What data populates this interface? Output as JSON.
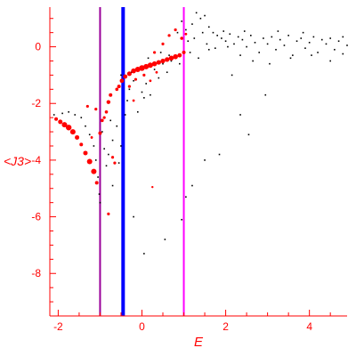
{
  "chart_data": {
    "type": "scatter",
    "title": "",
    "xlabel": "E",
    "ylabel": "<J3>",
    "xlim": [
      -2.2,
      4.9
    ],
    "ylim": [
      -9.5,
      1.4
    ],
    "x_ticks": [
      -2,
      0,
      2,
      4
    ],
    "y_ticks": [
      0,
      -2,
      -4,
      -6,
      -8
    ],
    "grid": false,
    "legend": "none",
    "colors": {
      "axis": "#ff0000",
      "black_points": "#000000",
      "red_points": "#ff0000",
      "blue_line": "#0000ff",
      "magenta_line": "#ff00ff",
      "purple_line": "#990099"
    },
    "vertical_lines": [
      {
        "x": -1.0,
        "color": "#990099",
        "width": 2
      },
      {
        "x": -0.45,
        "color": "#0000ff",
        "width": 4
      },
      {
        "x": 1.0,
        "color": "#ff00ff",
        "width": 2
      }
    ],
    "series": [
      {
        "marker": "small-dot",
        "color": "#000000",
        "points": [
          [
            -2.1,
            -2.4
          ],
          [
            -1.9,
            -2.35
          ],
          [
            -1.75,
            -2.3
          ],
          [
            -1.6,
            -2.4
          ],
          [
            -1.45,
            -2.5
          ],
          [
            -1.35,
            -2.8
          ],
          [
            -1.25,
            -3.1
          ],
          [
            -1.15,
            -3.5
          ],
          [
            -1.1,
            -4.0
          ],
          [
            -1.05,
            -4.6
          ],
          [
            -1.02,
            -5.2
          ],
          [
            -1.0,
            -5.5
          ],
          [
            -0.95,
            -3.0
          ],
          [
            -0.9,
            -3.6
          ],
          [
            -0.85,
            -4.2
          ],
          [
            -0.8,
            -3.8
          ],
          [
            -0.75,
            -2.6
          ],
          [
            -0.7,
            -3.3
          ],
          [
            -0.6,
            -2.8
          ],
          [
            -0.55,
            -4.1
          ],
          [
            -0.5,
            -3.5
          ],
          [
            -0.4,
            -2.4
          ],
          [
            -0.35,
            -1.9
          ],
          [
            -0.3,
            -1.5
          ],
          [
            -0.2,
            -1.2
          ],
          [
            -0.1,
            -2.3
          ],
          [
            0.0,
            -1.6
          ],
          [
            0.05,
            -1.8
          ],
          [
            0.1,
            -1.3
          ],
          [
            0.2,
            -1.7
          ],
          [
            0.3,
            -0.8
          ],
          [
            0.4,
            -1.1
          ],
          [
            0.5,
            -0.6
          ],
          [
            0.6,
            -0.9
          ],
          [
            0.7,
            -0.5
          ],
          [
            0.8,
            -0.3
          ],
          [
            0.9,
            -0.6
          ],
          [
            0.95,
            0.9
          ],
          [
            1.05,
            0.6
          ],
          [
            1.2,
            0.8
          ],
          [
            1.3,
            1.2
          ],
          [
            1.4,
            1.0
          ],
          [
            1.5,
            1.1
          ],
          [
            1.6,
            0.7
          ],
          [
            1.7,
            0.5
          ],
          [
            1.8,
            0.4
          ],
          [
            1.9,
            0.3
          ],
          [
            2.0,
            0.2
          ],
          [
            2.1,
            0.45
          ],
          [
            2.2,
            0.1
          ],
          [
            2.3,
            0.35
          ],
          [
            2.4,
            0.25
          ],
          [
            2.5,
            0.0
          ],
          [
            2.6,
            0.4
          ],
          [
            2.7,
            0.15
          ],
          [
            2.8,
            -0.2
          ],
          [
            2.9,
            0.3
          ],
          [
            3.0,
            0.1
          ],
          [
            3.1,
            0.35
          ],
          [
            3.2,
            -0.1
          ],
          [
            3.3,
            0.25
          ],
          [
            3.4,
            0.05
          ],
          [
            3.5,
            0.4
          ],
          [
            3.6,
            -0.3
          ],
          [
            3.7,
            0.2
          ],
          [
            3.8,
            0.3
          ],
          [
            3.9,
            -0.05
          ],
          [
            4.0,
            0.15
          ],
          [
            4.1,
            0.35
          ],
          [
            4.2,
            -0.2
          ],
          [
            4.3,
            0.25
          ],
          [
            4.4,
            0.1
          ],
          [
            4.5,
            0.3
          ],
          [
            4.6,
            -0.1
          ],
          [
            4.7,
            0.2
          ],
          [
            4.8,
            0.35
          ],
          [
            4.9,
            0.05
          ],
          [
            1.1,
            0.2
          ],
          [
            1.25,
            0.3
          ],
          [
            1.45,
            0.5
          ],
          [
            1.55,
            0.1
          ],
          [
            1.75,
            -0.05
          ],
          [
            2.05,
            0.0
          ],
          [
            2.35,
            -0.3
          ],
          [
            2.65,
            -0.5
          ],
          [
            3.05,
            -0.6
          ],
          [
            3.55,
            -0.4
          ],
          [
            4.05,
            -0.3
          ],
          [
            4.5,
            -0.5
          ],
          [
            4.8,
            -0.25
          ],
          [
            1.15,
            -0.2
          ],
          [
            1.35,
            -0.4
          ],
          [
            2.15,
            -1.0
          ],
          [
            2.95,
            -1.7
          ],
          [
            2.35,
            -2.4
          ],
          [
            2.55,
            -3.1
          ],
          [
            1.85,
            -3.8
          ],
          [
            1.5,
            -4.0
          ],
          [
            1.2,
            -4.9
          ],
          [
            1.05,
            -5.3
          ],
          [
            0.95,
            -6.1
          ],
          [
            0.55,
            -6.8
          ],
          [
            0.05,
            -7.3
          ],
          [
            -0.2,
            -6.0
          ],
          [
            -0.7,
            -4.9
          ],
          [
            -0.5,
            -1.0
          ],
          [
            -0.25,
            -0.9
          ],
          [
            0.15,
            -0.4
          ],
          [
            0.45,
            -0.2
          ],
          [
            0.65,
            -0.3
          ],
          [
            0.85,
            0.5
          ],
          [
            1.6,
            -0.1
          ],
          [
            1.95,
            0.55
          ],
          [
            2.45,
            0.55
          ],
          [
            3.25,
            0.55
          ],
          [
            3.85,
            0.5
          ]
        ]
      },
      {
        "marker": "red-blob",
        "color": "#ff0000",
        "points": [
          [
            -2.05,
            -2.55,
            2.0
          ],
          [
            -1.95,
            -2.65,
            2.5
          ],
          [
            -1.85,
            -2.75,
            3.0
          ],
          [
            -1.75,
            -2.85,
            3.2
          ],
          [
            -1.65,
            -3.0,
            3.0
          ],
          [
            -1.55,
            -3.2,
            2.5
          ],
          [
            -1.45,
            -3.45,
            2.0
          ],
          [
            -1.35,
            -3.75,
            2.5
          ],
          [
            -1.25,
            -4.05,
            3.0
          ],
          [
            -1.15,
            -4.4,
            3.0
          ],
          [
            -1.08,
            -4.8,
            2.0
          ],
          [
            -1.0,
            -3.05,
            2.0
          ],
          [
            -0.95,
            -2.6,
            1.8
          ],
          [
            -0.85,
            -2.3,
            1.8
          ],
          [
            -0.8,
            -1.95,
            2.2
          ],
          [
            -0.75,
            -1.7,
            2.0
          ],
          [
            -0.7,
            -3.9,
            1.6
          ],
          [
            -0.65,
            -4.1,
            1.6
          ],
          [
            -0.6,
            -1.5,
            1.8
          ],
          [
            -0.55,
            -1.4,
            2.0
          ],
          [
            -0.48,
            -1.2,
            2.4
          ],
          [
            -0.4,
            -1.05,
            2.4
          ],
          [
            -0.3,
            -0.95,
            2.6
          ],
          [
            -0.2,
            -0.85,
            2.8
          ],
          [
            -0.1,
            -0.8,
            3.0
          ],
          [
            0.0,
            -0.75,
            3.2
          ],
          [
            0.1,
            -0.7,
            3.0
          ],
          [
            0.2,
            -0.65,
            3.0
          ],
          [
            0.3,
            -0.6,
            2.8
          ],
          [
            0.4,
            -0.55,
            2.6
          ],
          [
            0.5,
            -0.5,
            2.6
          ],
          [
            0.6,
            -0.45,
            2.6
          ],
          [
            0.7,
            -0.4,
            2.8
          ],
          [
            0.8,
            -0.35,
            2.8
          ],
          [
            0.9,
            -0.3,
            2.4
          ],
          [
            1.0,
            -0.2,
            2.0
          ],
          [
            0.3,
            -0.2,
            1.6
          ],
          [
            0.5,
            0.1,
            1.6
          ],
          [
            0.65,
            0.4,
            1.6
          ],
          [
            0.8,
            0.6,
            1.6
          ],
          [
            0.95,
            0.3,
            1.8
          ],
          [
            1.05,
            0.45,
            1.4
          ],
          [
            0.2,
            -1.2,
            1.4
          ],
          [
            0.35,
            -0.9,
            1.4
          ],
          [
            -0.2,
            -1.9,
            1.4
          ],
          [
            -0.3,
            -1.4,
            1.6
          ],
          [
            -0.15,
            -1.15,
            1.6
          ],
          [
            0.05,
            -1.0,
            1.6
          ],
          [
            -0.8,
            -5.9,
            1.6
          ],
          [
            0.25,
            -4.95,
            1.2
          ],
          [
            -1.3,
            -2.1,
            1.6
          ],
          [
            -1.1,
            -2.2,
            1.6
          ],
          [
            -1.2,
            -3.2,
            1.4
          ],
          [
            -0.9,
            -2.5,
            1.6
          ]
        ]
      }
    ]
  }
}
